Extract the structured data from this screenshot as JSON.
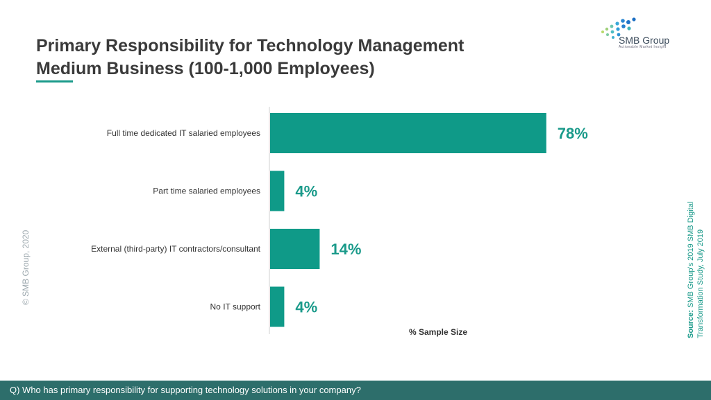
{
  "header": {
    "title_line1": "Primary Responsibility for Technology Management",
    "title_line2": "Medium Business (100-1,000 Employees)"
  },
  "logo": {
    "name": "SMB Group",
    "tagline": "Actionable Market Insight"
  },
  "chart_data": {
    "type": "bar",
    "orientation": "horizontal",
    "categories": [
      "Full time dedicated IT salaried employees",
      "Part time salaried employees",
      "External (third-party) IT contractors/consultant",
      "No IT support"
    ],
    "values": [
      78,
      4,
      14,
      4
    ],
    "value_labels": [
      "78%",
      "4%",
      "14%",
      "4%"
    ],
    "xlabel": "% Sample Size",
    "ylabel": "",
    "xlim": [
      0,
      100
    ],
    "bar_color": "#0f9a88",
    "label_color": "#1a9a8a",
    "grid": false,
    "legend": "none"
  },
  "copyright": "© SMB Group, 2020",
  "source": {
    "label": "Source:",
    "line1": "SMB Group's 2019 SMB Digital",
    "line2": "Transformation Study, July 2019"
  },
  "footer": {
    "question": "Q) Who has primary responsibility for supporting technology solutions in your company?"
  }
}
